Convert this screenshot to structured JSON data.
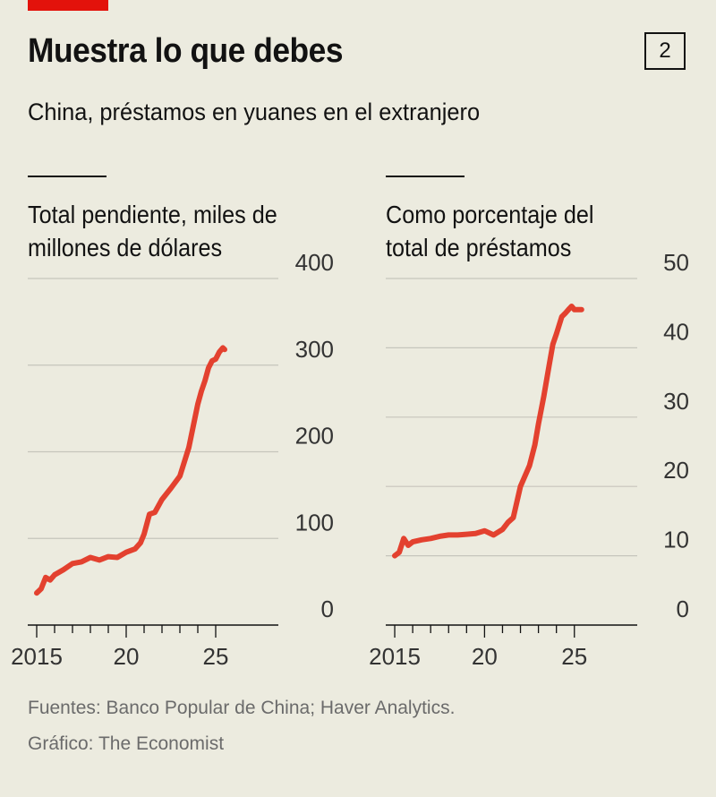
{
  "header": {
    "title": "Muestra lo que debes",
    "chart_number": "2",
    "subtitle": "China, préstamos en yuanes en el extranjero"
  },
  "panels": [
    {
      "title_line1": "Total pendiente, miles de",
      "title_line2": "millones de dólares"
    },
    {
      "title_line1": "Como porcentaje del",
      "title_line2": "total de préstamos"
    }
  ],
  "footer": {
    "source": "Fuentes: Banco Popular de China; Haver Analytics.",
    "credit": "Gráfico: The Economist"
  },
  "colors": {
    "line": "#e3412f",
    "accent": "#e3120b",
    "grid": "#c6c5bc",
    "background": "#ecebdf"
  },
  "chart_data": [
    {
      "type": "line",
      "title": "Total pendiente, miles de millones de dólares",
      "xlabel": "",
      "ylabel": "",
      "xlim": [
        2014.5,
        2028.5
      ],
      "ylim": [
        0,
        400
      ],
      "yticks": [
        0,
        100,
        200,
        300,
        400
      ],
      "ytick_labels": [
        "0",
        "100",
        "200",
        "300",
        "400"
      ],
      "xticks": [
        2015,
        2020,
        2025
      ],
      "xtick_labels": [
        "2015",
        "20",
        "25"
      ],
      "series": [
        {
          "name": "Total pendiente",
          "x": [
            2015.0,
            2015.25,
            2015.5,
            2015.75,
            2016.0,
            2016.5,
            2017.0,
            2017.5,
            2018.0,
            2018.5,
            2019.0,
            2019.5,
            2020.0,
            2020.5,
            2020.8,
            2021.0,
            2021.3,
            2021.6,
            2022.0,
            2022.5,
            2023.0,
            2023.5,
            2023.8,
            2024.0,
            2024.2,
            2024.4,
            2024.6,
            2024.8,
            2025.0,
            2025.2,
            2025.4,
            2025.5
          ],
          "values": [
            37,
            42,
            55,
            52,
            58,
            64,
            71,
            73,
            78,
            75,
            79,
            78,
            84,
            88,
            95,
            105,
            128,
            130,
            145,
            158,
            172,
            205,
            235,
            255,
            270,
            282,
            297,
            305,
            307,
            315,
            320,
            318
          ]
        }
      ]
    },
    {
      "type": "line",
      "title": "Como porcentaje del total de préstamos",
      "xlabel": "",
      "ylabel": "",
      "xlim": [
        2014.5,
        2028.5
      ],
      "ylim": [
        0,
        50
      ],
      "yticks": [
        0,
        10,
        20,
        30,
        40,
        50
      ],
      "ytick_labels": [
        "0",
        "10",
        "20",
        "30",
        "40",
        "50"
      ],
      "xticks": [
        2015,
        2020,
        2025
      ],
      "xtick_labels": [
        "2015",
        "20",
        "25"
      ],
      "series": [
        {
          "name": "Porcentaje del total",
          "x": [
            2015.0,
            2015.25,
            2015.5,
            2015.75,
            2016.0,
            2016.5,
            2017.0,
            2017.5,
            2018.0,
            2018.5,
            2019.0,
            2019.5,
            2020.0,
            2020.5,
            2021.0,
            2021.3,
            2021.6,
            2022.0,
            2022.5,
            2022.8,
            2023.0,
            2023.3,
            2023.6,
            2023.8,
            2024.0,
            2024.3,
            2024.5,
            2024.7,
            2024.85,
            2025.0,
            2025.2,
            2025.4
          ],
          "values": [
            10.0,
            10.5,
            12.5,
            11.5,
            12.0,
            12.3,
            12.5,
            12.8,
            13.0,
            13.0,
            13.1,
            13.2,
            13.6,
            13.0,
            13.8,
            14.8,
            15.5,
            20.0,
            23.0,
            26.0,
            29.0,
            33.0,
            37.5,
            40.5,
            42.0,
            44.5,
            45.0,
            45.6,
            46.0,
            45.5,
            45.5,
            45.5
          ]
        }
      ]
    }
  ]
}
